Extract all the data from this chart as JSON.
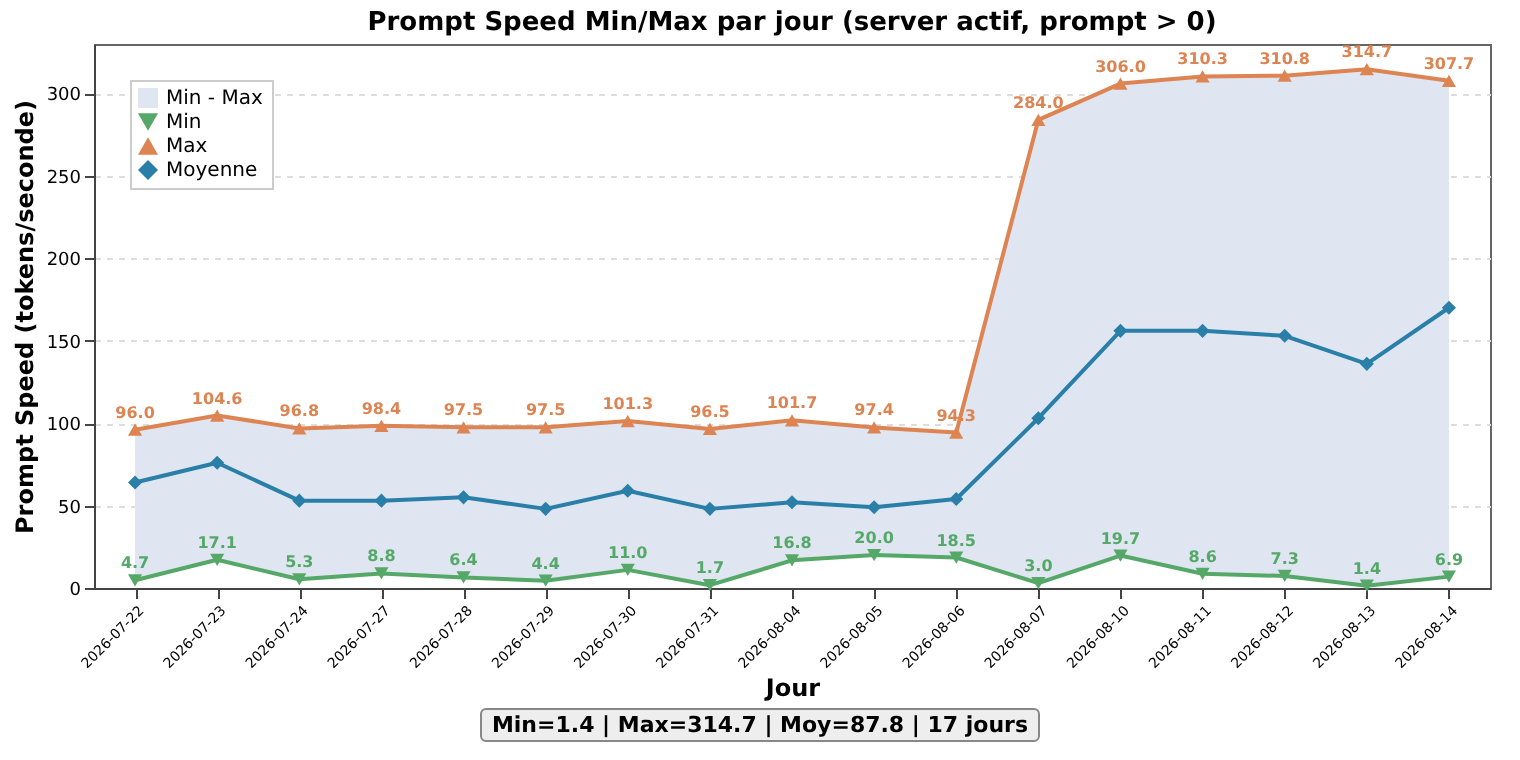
{
  "chart_data": {
    "type": "line",
    "title": "Prompt Speed Min/Max par jour (server actif, prompt > 0)",
    "xlabel": "Jour",
    "ylabel": "Prompt Speed (tokens/seconde)",
    "categories": [
      "2026-07-22",
      "2026-07-23",
      "2026-07-24",
      "2026-07-27",
      "2026-07-28",
      "2026-07-29",
      "2026-07-30",
      "2026-07-31",
      "2026-08-04",
      "2026-08-05",
      "2026-08-06",
      "2026-08-07",
      "2026-08-10",
      "2026-08-11",
      "2026-08-12",
      "2026-08-13",
      "2026-08-14"
    ],
    "series": [
      {
        "name": "Min",
        "type": "line",
        "color": "#55a868",
        "marker": "triangle",
        "values": [
          4.7,
          17.1,
          5.3,
          8.8,
          6.4,
          4.4,
          11.0,
          1.7,
          16.8,
          20.0,
          18.5,
          3.0,
          19.7,
          8.6,
          7.3,
          1.4,
          6.9
        ],
        "value_labels": [
          "4.7",
          "17.1",
          "5.3",
          "8.8",
          "6.4",
          "4.4",
          "11.0",
          "1.7",
          "16.8",
          "20.0",
          "18.5",
          "3.0",
          "19.7",
          "8.6",
          "7.3",
          "1.4",
          "6.9"
        ]
      },
      {
        "name": "Max",
        "type": "line",
        "color": "#dd8452",
        "marker": "triangle",
        "values": [
          96.0,
          104.6,
          96.8,
          98.4,
          97.5,
          97.5,
          101.3,
          96.5,
          101.7,
          97.4,
          94.3,
          284.0,
          306.0,
          310.3,
          310.8,
          314.7,
          307.7
        ],
        "value_labels": [
          "96.0",
          "104.6",
          "96.8",
          "98.4",
          "97.5",
          "97.5",
          "101.3",
          "96.5",
          "101.7",
          "97.4",
          "94.3",
          "284.0",
          "306.0",
          "310.3",
          "310.8",
          "314.7",
          "307.7"
        ]
      },
      {
        "name": "Moyenne",
        "type": "line",
        "color": "#2a7fa8",
        "marker": "diamond",
        "values": [
          64,
          76,
          53,
          53,
          55,
          48,
          59,
          48,
          52,
          49,
          54,
          103,
          156,
          156,
          153,
          136,
          170
        ]
      },
      {
        "name": "Min - Max",
        "type": "area",
        "color": "#dfe6f1",
        "values": [
          null,
          null,
          null,
          null,
          null,
          null,
          null,
          null,
          null,
          null,
          null,
          null,
          null,
          null,
          null,
          null,
          null
        ],
        "lower": [
          4.7,
          17.1,
          5.3,
          8.8,
          6.4,
          4.4,
          11.0,
          1.7,
          16.8,
          20.0,
          18.5,
          3.0,
          19.7,
          8.6,
          7.3,
          1.4,
          6.9
        ],
        "upper": [
          96.0,
          104.6,
          96.8,
          98.4,
          97.5,
          97.5,
          101.3,
          96.5,
          101.7,
          97.4,
          94.3,
          284.0,
          306.0,
          310.3,
          310.8,
          314.7,
          307.7
        ]
      }
    ],
    "ylim": [
      0,
      330
    ],
    "yticks": [
      0,
      50,
      100,
      150,
      200,
      250,
      300
    ],
    "grid": "y",
    "legend": "top left",
    "line_style": "solid",
    "annotations": [
      "Min=1.4 | Max=314.7 | Moy=87.8 | 17 jours"
    ]
  }
}
